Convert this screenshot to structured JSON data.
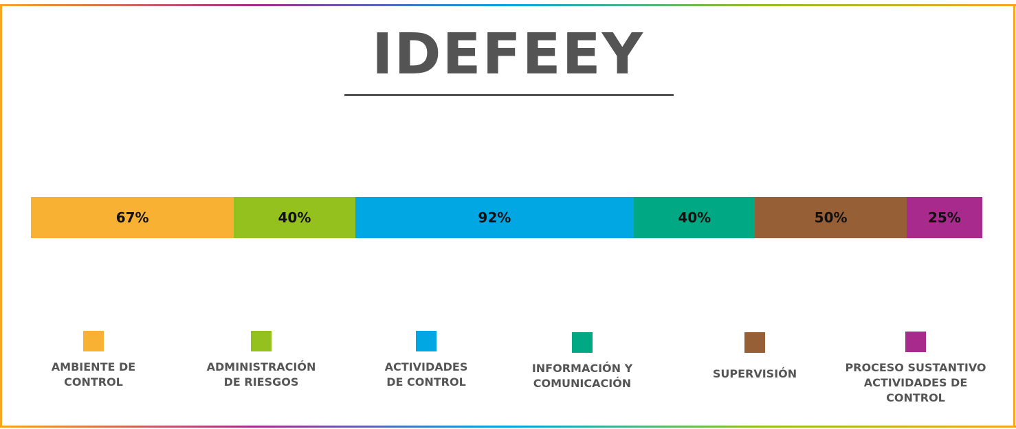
{
  "title": "IDEFEEY",
  "chart_data": {
    "type": "bar",
    "orientation": "horizontal-stacked",
    "title": "IDEFEEY",
    "series": [
      {
        "name": "AMBIENTE DE CONTROL",
        "value": 67,
        "label": "67%",
        "color": "#f8b133"
      },
      {
        "name": "ADMINISTRACIÓN DE RIESGOS",
        "value": 40,
        "label": "40%",
        "color": "#95c11f"
      },
      {
        "name": "ACTIVIDADES DE CONTROL",
        "value": 92,
        "label": "92%",
        "color": "#00a7e2"
      },
      {
        "name": "INFORMACIÓN Y COMUNICACIÓN",
        "value": 40,
        "label": "40%",
        "color": "#00a884"
      },
      {
        "name": "SUPERVISIÓN",
        "value": 50,
        "label": "50%",
        "color": "#975f36"
      },
      {
        "name": "PROCESO SUSTANTIVO ACTIVIDADES DE CONTROL",
        "value": 25,
        "label": "25%",
        "color": "#a72a8c"
      }
    ],
    "legend_position": "bottom",
    "grid": false
  },
  "legend": [
    {
      "label": "AMBIENTE DE\nCONTROL",
      "color": "#f8b133"
    },
    {
      "label": "ADMINISTRACIÓN\nDE RIESGOS",
      "color": "#95c11f"
    },
    {
      "label": "ACTIVIDADES\nDE CONTROL",
      "color": "#00a7e2"
    },
    {
      "label": "INFORMACIÓN Y\nCOMUNICACIÓN",
      "color": "#00a884"
    },
    {
      "label": "SUPERVISIÓN",
      "color": "#975f36"
    },
    {
      "label": "PROCESO SUSTANTIVO\nACTIVIDADES DE\nCONTROL",
      "color": "#a72a8c"
    }
  ]
}
